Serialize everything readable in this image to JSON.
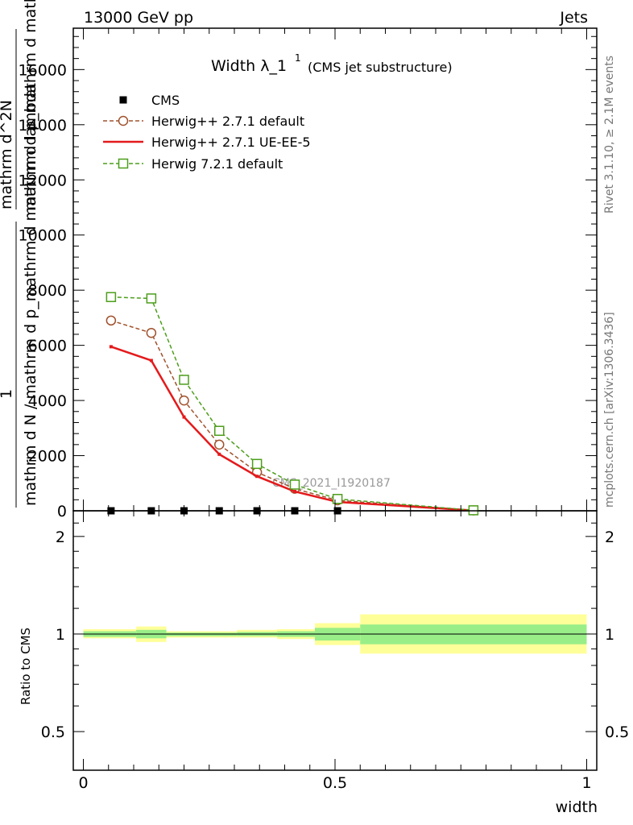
{
  "header": {
    "left": "13000 GeV pp",
    "right": "Jets"
  },
  "side": {
    "rivet": "Rivet 3.1.10, ≥ 2.1M events",
    "mcplots": "mcplots.cern.ch [arXiv:1306.3436]"
  },
  "watermark": "CMS_2021_I1920187",
  "colors": {
    "cms": "#000000",
    "h271d": "#a0522d",
    "h271ue": "#e41a1c",
    "h721": "#4d9e1b",
    "band_inner": "#99ee88",
    "band_outer": "#ffff99"
  },
  "chart_data": [
    {
      "type": "line",
      "title": "Width λ_1",
      "title_sup": "1",
      "title_note": "(CMS jet substructure)",
      "ylabel_num": "1",
      "ylabel_den": "mathrm d N / mathrm d p_mathrm d mathrm d lambda",
      "ylabel_num2": "mathrm d^2N",
      "ylabel_den2": "mathrm d p_mathrm d mathrm d lambda",
      "xlim": [
        -0.02,
        1.02
      ],
      "ylim": [
        0,
        17500
      ],
      "yticks": [
        0,
        2000,
        4000,
        6000,
        8000,
        10000,
        12000,
        14000,
        16000
      ],
      "ytick_labels": [
        "0",
        "2000",
        "4000",
        "6000",
        "8000",
        "10000",
        "12000",
        "14000",
        "16000"
      ],
      "legend_position": "top-left",
      "series": [
        {
          "name": "CMS",
          "style": "marker-square",
          "color": "#000000",
          "x": [
            0.055,
            0.135,
            0.2,
            0.27,
            0.345,
            0.42,
            0.505,
            0.775
          ],
          "y": [
            0,
            0,
            0,
            0,
            0,
            0,
            0,
            0
          ]
        },
        {
          "name": "Herwig++ 2.7.1 default",
          "style": "dashed-circle",
          "color": "#a0522d",
          "x": [
            0.055,
            0.135,
            0.2,
            0.27,
            0.345,
            0.42,
            0.505,
            0.775
          ],
          "y": [
            6900,
            6450,
            4000,
            2400,
            1400,
            800,
            380,
            15
          ]
        },
        {
          "name": "Herwig++ 2.7.1 UE-EE-5",
          "style": "solid-dot",
          "color": "#e41a1c",
          "x": [
            0.055,
            0.135,
            0.2,
            0.27,
            0.345,
            0.42,
            0.505,
            0.775
          ],
          "y": [
            5950,
            5450,
            3400,
            2050,
            1250,
            700,
            320,
            12
          ]
        },
        {
          "name": "Herwig 7.2.1 default",
          "style": "dashed-square",
          "color": "#4d9e1b",
          "x": [
            0.055,
            0.135,
            0.2,
            0.27,
            0.345,
            0.42,
            0.505,
            0.775
          ],
          "y": [
            7750,
            7700,
            4750,
            2900,
            1700,
            950,
            430,
            18
          ]
        }
      ]
    },
    {
      "type": "area",
      "ylabel": "Ratio to CMS",
      "xlabel": "width",
      "xlim": [
        -0.02,
        1.02
      ],
      "ylim": [
        0.38,
        2.4
      ],
      "scale": "log",
      "yticks": [
        0.5,
        1,
        2
      ],
      "ytick_labels": [
        "0.5",
        "1",
        "2"
      ],
      "xticks": [
        0,
        0.5,
        1
      ],
      "xtick_labels": [
        "0",
        "0.5",
        "1"
      ],
      "bins": [
        {
          "x0": 0.0,
          "x1": 0.105,
          "in_lo": 0.98,
          "in_hi": 1.02,
          "out_lo": 0.97,
          "out_hi": 1.035
        },
        {
          "x0": 0.105,
          "x1": 0.165,
          "in_lo": 0.97,
          "in_hi": 1.03,
          "out_lo": 0.945,
          "out_hi": 1.055
        },
        {
          "x0": 0.165,
          "x1": 0.305,
          "in_lo": 0.985,
          "in_hi": 1.01,
          "out_lo": 0.975,
          "out_hi": 1.02
        },
        {
          "x0": 0.305,
          "x1": 0.385,
          "in_lo": 0.985,
          "in_hi": 1.015,
          "out_lo": 0.975,
          "out_hi": 1.03
        },
        {
          "x0": 0.385,
          "x1": 0.46,
          "in_lo": 0.98,
          "in_hi": 1.02,
          "out_lo": 0.965,
          "out_hi": 1.035
        },
        {
          "x0": 0.46,
          "x1": 0.55,
          "in_lo": 0.955,
          "in_hi": 1.045,
          "out_lo": 0.925,
          "out_hi": 1.08
        },
        {
          "x0": 0.55,
          "x1": 1.0,
          "in_lo": 0.93,
          "in_hi": 1.07,
          "out_lo": 0.87,
          "out_hi": 1.15
        }
      ],
      "reference_line": 1
    }
  ]
}
